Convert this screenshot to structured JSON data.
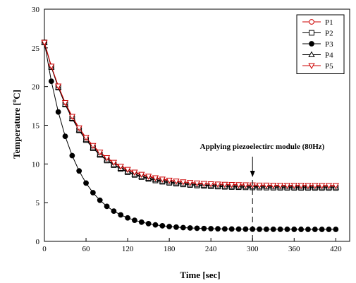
{
  "chart_data": {
    "type": "line",
    "xlabel": "Time [sec]",
    "ylabel_prefix": "Temperature [",
    "ylabel_sup": "o",
    "ylabel_suffix": "C]",
    "xlim": [
      0,
      440
    ],
    "ylim": [
      0,
      30
    ],
    "xticks": [
      0,
      60,
      120,
      180,
      240,
      300,
      360,
      420
    ],
    "yticks": [
      0,
      5,
      10,
      15,
      20,
      25,
      30
    ],
    "grid": false,
    "legend_position": "top-right",
    "annotation": {
      "text": "Applying piezoelectirc module (80Hz)",
      "x": 300,
      "y_from": 8.3,
      "y_to": 0
    },
    "series": [
      {
        "name": "P1",
        "marker": "circle-open",
        "color": "#cc0000",
        "x0": 0,
        "dx": 10,
        "tau": 55,
        "T0": 25.7,
        "Tinf": 7.1
      },
      {
        "name": "P2",
        "marker": "square-open",
        "color": "#000000",
        "x0": 0,
        "dx": 10,
        "tau": 54,
        "T0": 25.7,
        "Tinf": 6.9
      },
      {
        "name": "P3",
        "marker": "circle-filled",
        "color": "#000000",
        "x0": 0,
        "dx": 10,
        "tau": 43,
        "T0": 25.7,
        "Tinf": 1.55
      },
      {
        "name": "P4",
        "marker": "triangle-up-open",
        "color": "#000000",
        "x0": 0,
        "dx": 10,
        "tau": 54,
        "T0": 25.7,
        "Tinf": 7.0
      },
      {
        "name": "P5",
        "marker": "triangle-down-open",
        "color": "#cc0000",
        "x0": 0,
        "dx": 10,
        "tau": 55,
        "T0": 25.7,
        "Tinf": 7.2
      }
    ]
  }
}
